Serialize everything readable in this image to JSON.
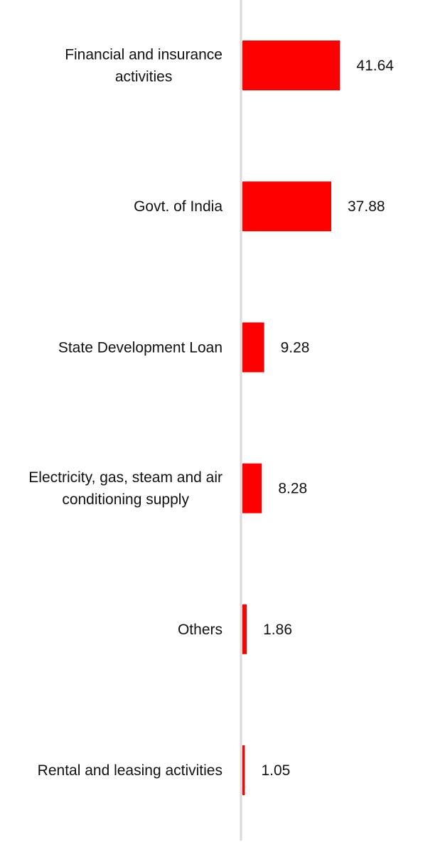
{
  "chart_data": {
    "type": "bar",
    "orientation": "horizontal",
    "categories": [
      [
        "Financial and insurance",
        "activities"
      ],
      [
        "Govt. of India"
      ],
      [
        "State Development Loan"
      ],
      [
        "Electricity, gas, steam and air",
        "conditioning supply"
      ],
      [
        "Others"
      ],
      [
        "Rental and leasing activities"
      ]
    ],
    "values": [
      41.64,
      37.88,
      9.28,
      8.28,
      1.86,
      1.05
    ],
    "value_labels": [
      "41.64",
      "37.88",
      "9.28",
      "8.28",
      "1.86",
      "1.05"
    ],
    "bar_color": "#ff0000",
    "axis_color": "#d9d9d9",
    "grid": false,
    "legend": "none"
  }
}
